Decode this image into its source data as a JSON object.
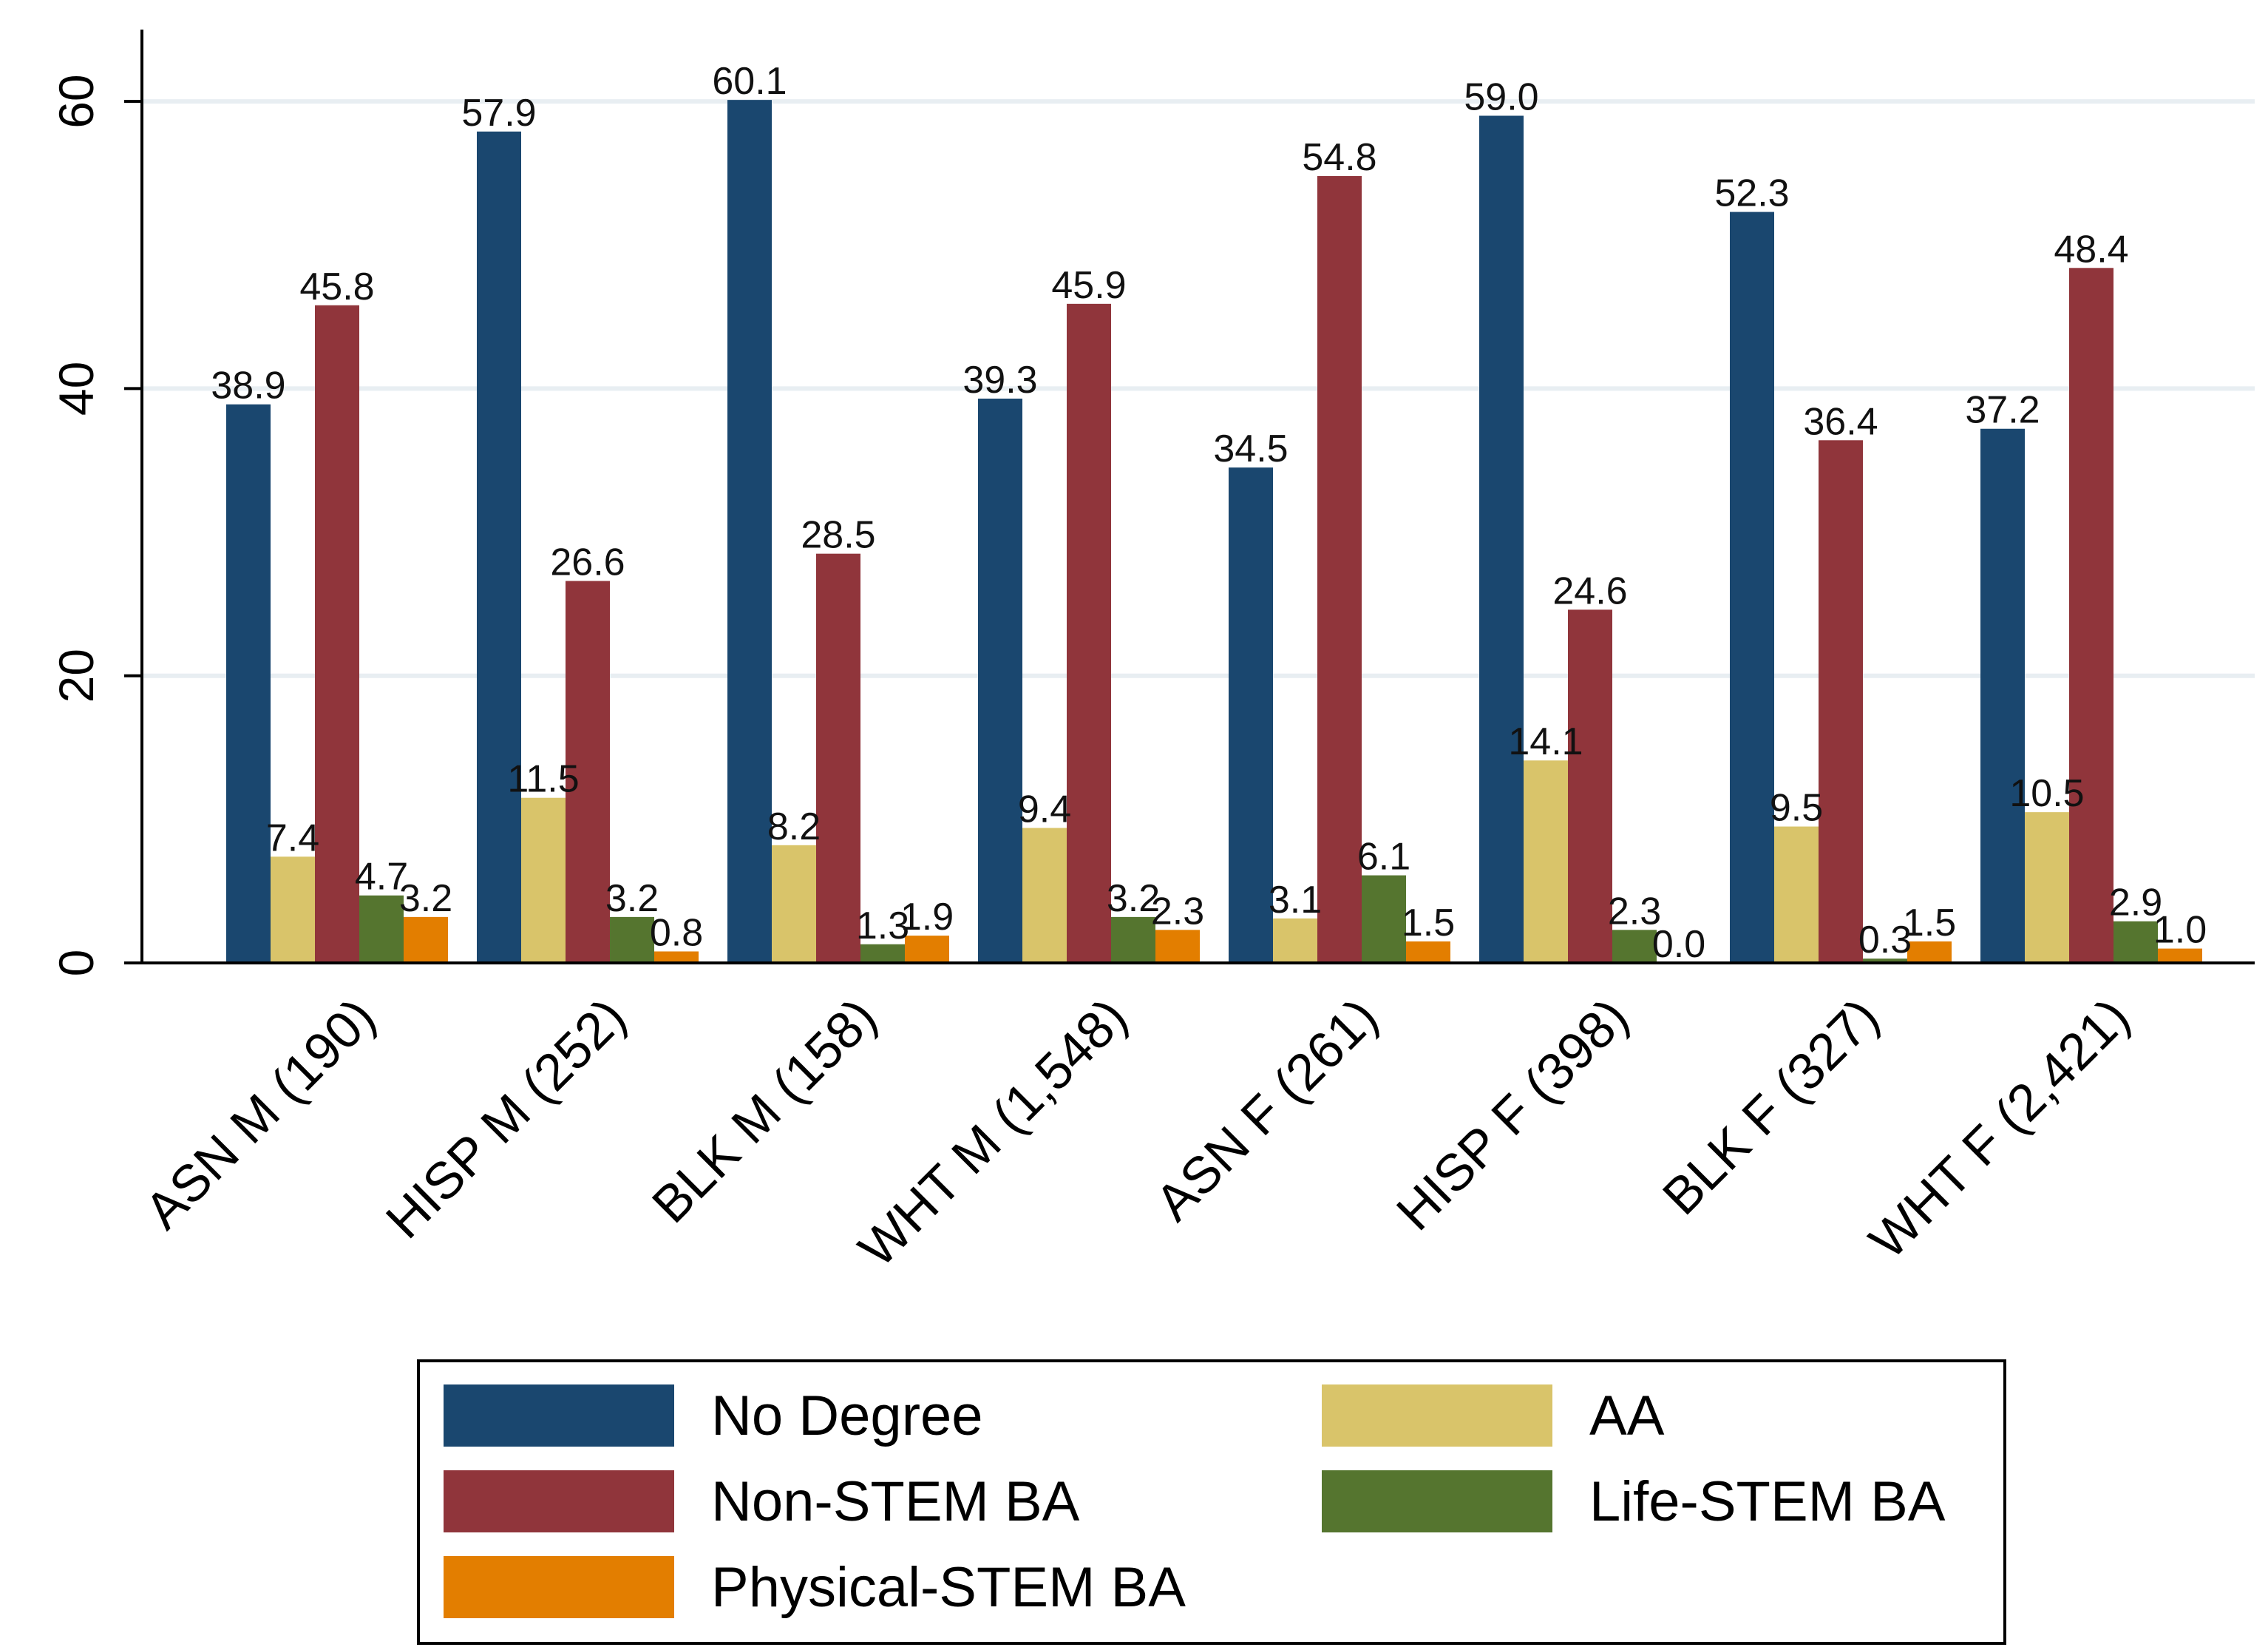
{
  "chart_data": {
    "type": "bar",
    "title": "",
    "xlabel": "",
    "ylabel": "",
    "ylim": [
      0,
      65
    ],
    "yticks": [
      0,
      20,
      40,
      60
    ],
    "ytick_labels": [
      "0",
      "20",
      "40",
      "60"
    ],
    "grid": true,
    "categories": [
      "ASN M (190)",
      "HISP M (252)",
      "BLK M (158)",
      "WHT M (1,548)",
      "ASN F (261)",
      "HISP F (398)",
      "BLK F (327)",
      "WHT F (2,421)"
    ],
    "series": [
      {
        "name": "No Degree",
        "color": "#1a476f",
        "values": [
          38.9,
          57.9,
          60.1,
          39.3,
          34.5,
          59.0,
          52.3,
          37.2
        ],
        "labels": [
          "38.9",
          "57.9",
          "60.1",
          "39.3",
          "34.5",
          "59.0",
          "52.3",
          "37.2"
        ]
      },
      {
        "name": "AA",
        "color": "#d9c46a",
        "values": [
          7.4,
          11.5,
          8.2,
          9.4,
          3.1,
          14.1,
          9.5,
          10.5
        ],
        "labels": [
          "7.4",
          "11.5",
          "8.2",
          "9.4",
          "3.1",
          "14.1",
          "9.5",
          "10.5"
        ]
      },
      {
        "name": "Non-STEM BA",
        "color": "#90353b",
        "values": [
          45.8,
          26.6,
          28.5,
          45.9,
          54.8,
          24.6,
          36.4,
          48.4
        ],
        "labels": [
          "45.8",
          "26.6",
          "28.5",
          "45.9",
          "54.8",
          "24.6",
          "36.4",
          "48.4"
        ]
      },
      {
        "name": "Life-STEM BA",
        "color": "#55752f",
        "values": [
          4.7,
          3.2,
          1.3,
          3.2,
          6.1,
          2.3,
          0.3,
          2.9
        ],
        "labels": [
          "4.7",
          "3.2",
          "1.3",
          "3.2",
          "6.1",
          "2.3",
          "0.3",
          "2.9"
        ]
      },
      {
        "name": "Physical-STEM BA",
        "color": "#e37e00",
        "values": [
          3.2,
          0.8,
          1.9,
          2.3,
          1.5,
          0.0,
          1.5,
          1.0
        ],
        "labels": [
          "3.2",
          "0.8",
          "1.9",
          "2.3",
          "1.5",
          "0.0",
          "1.5",
          "1.0"
        ]
      }
    ],
    "legend": {
      "placement": "bottom",
      "columns": 2,
      "order": [
        "No Degree",
        "AA",
        "Non-STEM BA",
        "Life-STEM BA",
        "Physical-STEM BA"
      ]
    }
  }
}
